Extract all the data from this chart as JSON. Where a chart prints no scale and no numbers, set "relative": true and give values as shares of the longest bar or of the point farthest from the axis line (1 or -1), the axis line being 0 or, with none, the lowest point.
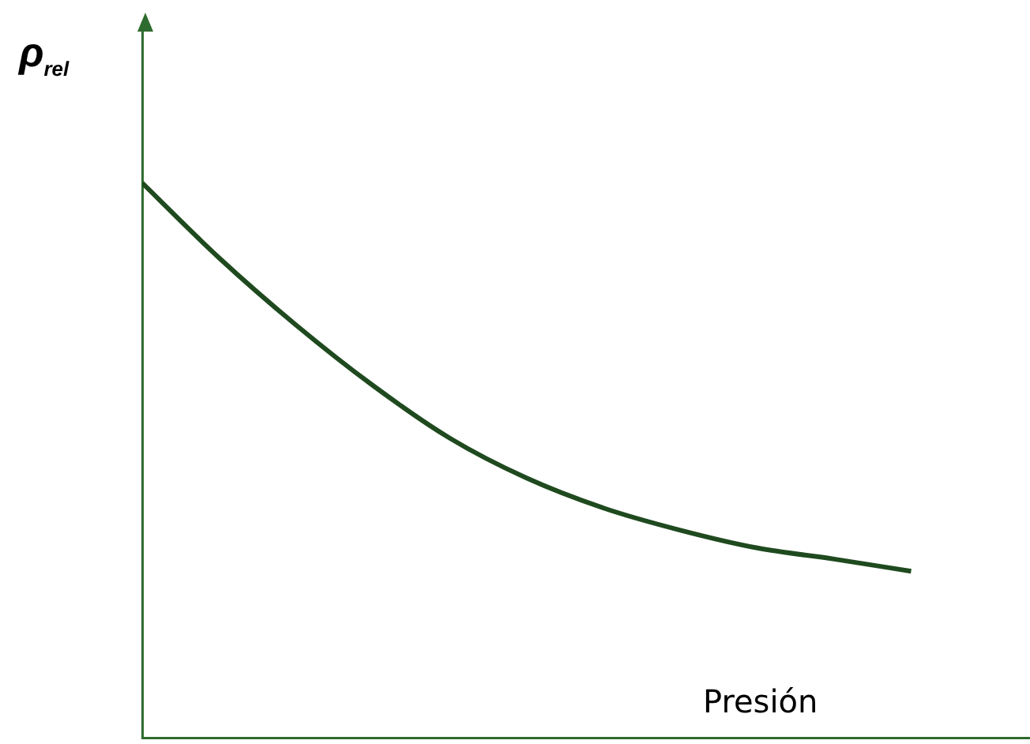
{
  "chart_data": {
    "type": "line",
    "relative": true,
    "xlabel": "Presión",
    "ylabel": "ρ$_{rel}$",
    "categories": [
      null,
      null,
      null,
      null,
      null,
      null,
      null,
      null,
      null,
      null,
      null
    ],
    "series": [
      {
        "color": "#1f4a1f",
        "values": [
          1.0,
          0.865,
          0.744,
          0.635,
          0.54,
          0.468,
          0.414,
          0.374,
          0.342,
          0.322,
          0.3
        ]
      }
    ],
    "grid": false,
    "legend": false,
    "marker": "none",
    "line_style": "solid"
  }
}
